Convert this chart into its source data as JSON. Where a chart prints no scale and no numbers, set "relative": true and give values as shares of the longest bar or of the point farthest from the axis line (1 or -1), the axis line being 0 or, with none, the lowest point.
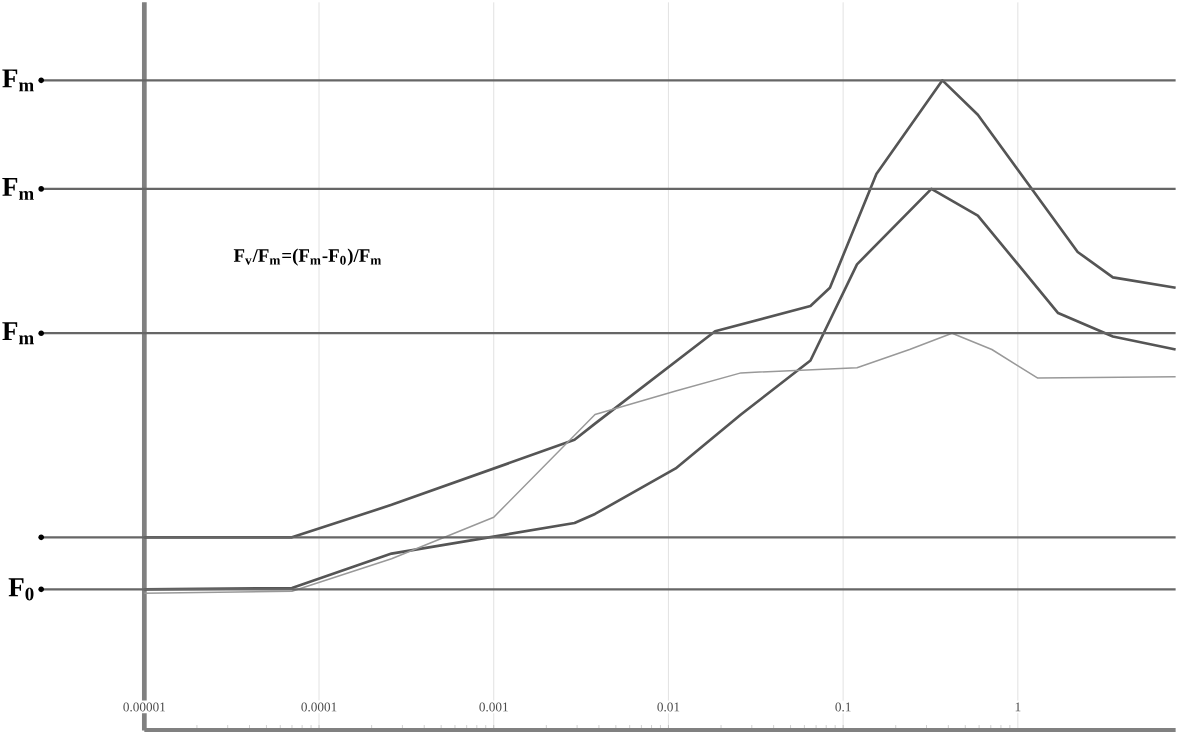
{
  "chart_data": {
    "type": "line",
    "relative": true,
    "log": "x",
    "grid": "x",
    "xlim": [
      1e-05,
      8
    ],
    "xticks": [
      {
        "value": 1e-05,
        "label": "0.00001"
      },
      0.0001,
      0.001,
      0.01,
      0.1,
      1
    ],
    "series": [
      {
        "color": "#555555",
        "x": [
          1e-05,
          7e-05,
          0.00026,
          0.0029,
          0.0038,
          0.0185,
          0.065,
          0.084,
          0.155,
          0.37,
          0.59,
          2.2,
          3.5,
          8
        ],
        "values": [
          0.297,
          0.297,
          0.347,
          0.447,
          0.472,
          0.614,
          0.653,
          0.681,
          0.856,
          1,
          0.947,
          0.736,
          0.697,
          0.681
        ]
      },
      {
        "color": "#555555",
        "x": [
          1e-05,
          7e-05,
          0.00026,
          0.0029,
          0.0038,
          0.011,
          0.026,
          0.065,
          0.12,
          0.32,
          0.59,
          1.7,
          3.5,
          8
        ],
        "values": [
          0.217,
          0.219,
          0.272,
          0.319,
          0.333,
          0.403,
          0.486,
          0.569,
          0.717,
          0.833,
          0.792,
          0.642,
          0.606,
          0.586
        ]
      },
      {
        "color": "#999999",
        "x": [
          1e-05,
          7e-05,
          0.00026,
          0.001,
          0.0038,
          0.011,
          0.026,
          0.12,
          0.24,
          0.42,
          0.71,
          1.3,
          8
        ],
        "values": [
          0.211,
          0.214,
          0.264,
          0.328,
          0.486,
          0.522,
          0.55,
          0.558,
          0.586,
          0.611,
          0.586,
          0.542,
          0.544
        ]
      }
    ],
    "ref_lines": [
      {
        "axis": "y",
        "value": 1,
        "label": "F$_{m}$"
      },
      {
        "axis": "y",
        "value": 0.833,
        "label": "F$_{m}$"
      },
      {
        "axis": "y",
        "value": 0.611,
        "label": "F$_{m}$"
      },
      {
        "axis": "y",
        "value": 0.297
      },
      {
        "axis": "y",
        "value": 0.217,
        "label": "F$_{0}$"
      }
    ],
    "annotations": [
      "F$_{v}$/F$_{m}$=(F$_{m}$-F$_{0}$)/F$_{m}$"
    ]
  }
}
